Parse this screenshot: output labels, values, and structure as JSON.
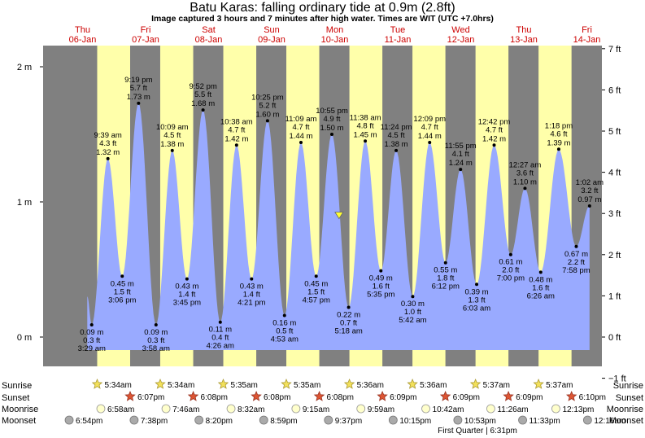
{
  "title": "Batu Karas: falling  ordinary tide at 0.9m (2.8ft)",
  "subtitle": "Image captured 3 hours and 7 minutes after high water. Times are WIT (UTC +7.0hrs)",
  "chart_data": {
    "type": "area",
    "title": "Batu Karas: falling  ordinary tide at 0.9m (2.8ft)",
    "subtitle": "Image captured 3 hours and 7 minutes after high water. Times are WIT (UTC +7.0hrs)",
    "ylabel_left_ticks": [
      "0 m",
      "1 m",
      "2 m"
    ],
    "ylabel_right_ticks": [
      "−1 ft",
      "0 ft",
      "1 ft",
      "2 ft",
      "3 ft",
      "4 ft",
      "5 ft",
      "6 ft",
      "7 ft"
    ],
    "ylim_m": [
      -0.1,
      2.18
    ],
    "colors": {
      "night": "#808080",
      "day": "#ffffaa",
      "tide": "#99aaff",
      "marker": "#ffff33"
    },
    "days": [
      {
        "dow": "Thu",
        "date": "06-Jan"
      },
      {
        "dow": "Fri",
        "date": "07-Jan"
      },
      {
        "dow": "Sat",
        "date": "08-Jan"
      },
      {
        "dow": "Sun",
        "date": "09-Jan"
      },
      {
        "dow": "Mon",
        "date": "10-Jan"
      },
      {
        "dow": "Tue",
        "date": "11-Jan"
      },
      {
        "dow": "Wed",
        "date": "12-Jan"
      },
      {
        "dow": "Thu",
        "date": "13-Jan"
      },
      {
        "dow": "Fri",
        "date": "14-Jan"
      }
    ],
    "tides": [
      {
        "time": "3:29 am",
        "m": 0.09,
        "ft": 0.3,
        "m_label": "0.09 m",
        "ft_label": "0.3 ft",
        "type": "low"
      },
      {
        "time": "9:39 am",
        "m": 1.32,
        "ft": 4.3,
        "m_label": "1.32 m",
        "ft_label": "4.3 ft",
        "type": "high"
      },
      {
        "time": "3:06 pm",
        "m": 0.45,
        "ft": 1.5,
        "m_label": "0.45 m",
        "ft_label": "1.5 ft",
        "type": "low"
      },
      {
        "time": "9:19 pm",
        "m": 1.73,
        "ft": 5.7,
        "m_label": "1.73 m",
        "ft_label": "5.7 ft",
        "type": "high"
      },
      {
        "time": "3:58 am",
        "m": 0.09,
        "ft": 0.3,
        "m_label": "0.09 m",
        "ft_label": "0.3 ft",
        "type": "low"
      },
      {
        "time": "10:09 am",
        "m": 1.38,
        "ft": 4.5,
        "m_label": "1.38 m",
        "ft_label": "4.5 ft",
        "type": "high"
      },
      {
        "time": "3:45 pm",
        "m": 0.43,
        "ft": 1.4,
        "m_label": "0.43 m",
        "ft_label": "1.4 ft",
        "type": "low"
      },
      {
        "time": "9:52 pm",
        "m": 1.68,
        "ft": 5.5,
        "m_label": "1.68 m",
        "ft_label": "5.5 ft",
        "type": "high"
      },
      {
        "time": "4:26 am",
        "m": 0.11,
        "ft": 0.4,
        "m_label": "0.11 m",
        "ft_label": "0.4 ft",
        "type": "low"
      },
      {
        "time": "10:38 am",
        "m": 1.42,
        "ft": 4.7,
        "m_label": "1.42 m",
        "ft_label": "4.7 ft",
        "type": "high"
      },
      {
        "time": "4:21 pm",
        "m": 0.43,
        "ft": 1.4,
        "m_label": "0.43 m",
        "ft_label": "1.4 ft",
        "type": "low"
      },
      {
        "time": "10:25 pm",
        "m": 1.6,
        "ft": 5.2,
        "m_label": "1.60 m",
        "ft_label": "5.2 ft",
        "type": "high"
      },
      {
        "time": "4:53 am",
        "m": 0.16,
        "ft": 0.5,
        "m_label": "0.16 m",
        "ft_label": "0.5 ft",
        "type": "low"
      },
      {
        "time": "11:09 am",
        "m": 1.44,
        "ft": 4.7,
        "m_label": "1.44 m",
        "ft_label": "4.7 ft",
        "type": "high"
      },
      {
        "time": "4:57 pm",
        "m": 0.45,
        "ft": 1.5,
        "m_label": "0.45 m",
        "ft_label": "1.5 ft",
        "type": "low"
      },
      {
        "time": "10:55 pm",
        "m": 1.5,
        "ft": 4.9,
        "m_label": "1.50 m",
        "ft_label": "4.9 ft",
        "type": "high"
      },
      {
        "time": "5:18 am",
        "m": 0.22,
        "ft": 0.7,
        "m_label": "0.22 m",
        "ft_label": "0.7 ft",
        "type": "low"
      },
      {
        "time": "11:38 am",
        "m": 1.45,
        "ft": 4.8,
        "m_label": "1.45 m",
        "ft_label": "4.8 ft",
        "type": "high"
      },
      {
        "time": "5:35 pm",
        "m": 0.49,
        "ft": 1.6,
        "m_label": "0.49 m",
        "ft_label": "1.6 ft",
        "type": "low"
      },
      {
        "time": "11:24 pm",
        "m": 1.38,
        "ft": 4.5,
        "m_label": "1.38 m",
        "ft_label": "4.5 ft",
        "type": "high"
      },
      {
        "time": "5:42 am",
        "m": 0.3,
        "ft": 1.0,
        "m_label": "0.30 m",
        "ft_label": "1.0 ft",
        "type": "low"
      },
      {
        "time": "12:09 pm",
        "m": 1.44,
        "ft": 4.7,
        "m_label": "1.44 m",
        "ft_label": "4.7 ft",
        "type": "high"
      },
      {
        "time": "6:12 pm",
        "m": 0.55,
        "ft": 1.8,
        "m_label": "0.55 m",
        "ft_label": "1.8 ft",
        "type": "low"
      },
      {
        "time": "11:55 pm",
        "m": 1.24,
        "ft": 4.1,
        "m_label": "1.24 m",
        "ft_label": "4.1 ft",
        "type": "high"
      },
      {
        "time": "6:03 am",
        "m": 0.39,
        "ft": 1.3,
        "m_label": "0.39 m",
        "ft_label": "1.3 ft",
        "type": "low"
      },
      {
        "time": "12:42 pm",
        "m": 1.42,
        "ft": 4.7,
        "m_label": "1.42 m",
        "ft_label": "4.7 ft",
        "type": "high"
      },
      {
        "time": "7:00 pm",
        "m": 0.61,
        "ft": 2.0,
        "m_label": "0.61 m",
        "ft_label": "2.0 ft",
        "type": "low"
      },
      {
        "time": "12:27 am",
        "m": 1.1,
        "ft": 3.6,
        "m_label": "1.10 m",
        "ft_label": "3.6 ft",
        "type": "high"
      },
      {
        "time": "6:26 am",
        "m": 0.48,
        "ft": 1.6,
        "m_label": "0.48 m",
        "ft_label": "1.6 ft",
        "type": "low"
      },
      {
        "time": "1:18 pm",
        "m": 1.39,
        "ft": 4.6,
        "m_label": "1.39 m",
        "ft_label": "4.6 ft",
        "type": "high"
      },
      {
        "time": "7:58 pm",
        "m": 0.67,
        "ft": 2.2,
        "m_label": "0.67 m",
        "ft_label": "2.2 ft",
        "type": "low"
      },
      {
        "time": "1:02 am",
        "m": 0.97,
        "ft": 3.2,
        "m_label": "0.97 m",
        "ft_label": "3.2 ft",
        "type": "high"
      }
    ],
    "current_tide": {
      "time": "1:40 am",
      "m": 0.9,
      "ft": 2.8,
      "day_index": 4
    },
    "rows": {
      "labels": [
        "Sunrise",
        "Sunset",
        "Moonrise",
        "Moonset"
      ],
      "sunrise": [
        "5:34am",
        "5:34am",
        "5:35am",
        "5:35am",
        "5:36am",
        "5:36am",
        "5:37am",
        "5:37am"
      ],
      "sunset": [
        "6:07pm",
        "6:08pm",
        "6:08pm",
        "6:08pm",
        "6:09pm",
        "6:09pm",
        "6:09pm",
        "6:10pm"
      ],
      "moonrise": [
        "6:58am",
        "7:46am",
        "8:32am",
        "9:15am",
        "9:59am",
        "10:42am",
        "11:26am",
        "12:13pm"
      ],
      "moonset": [
        "6:54pm",
        "7:38pm",
        "8:20pm",
        "8:59pm",
        "9:37pm",
        "10:15pm",
        "10:53pm",
        "11:33pm",
        "12:16am"
      ],
      "moon_phase": "First Quarter | 6:31pm"
    }
  }
}
